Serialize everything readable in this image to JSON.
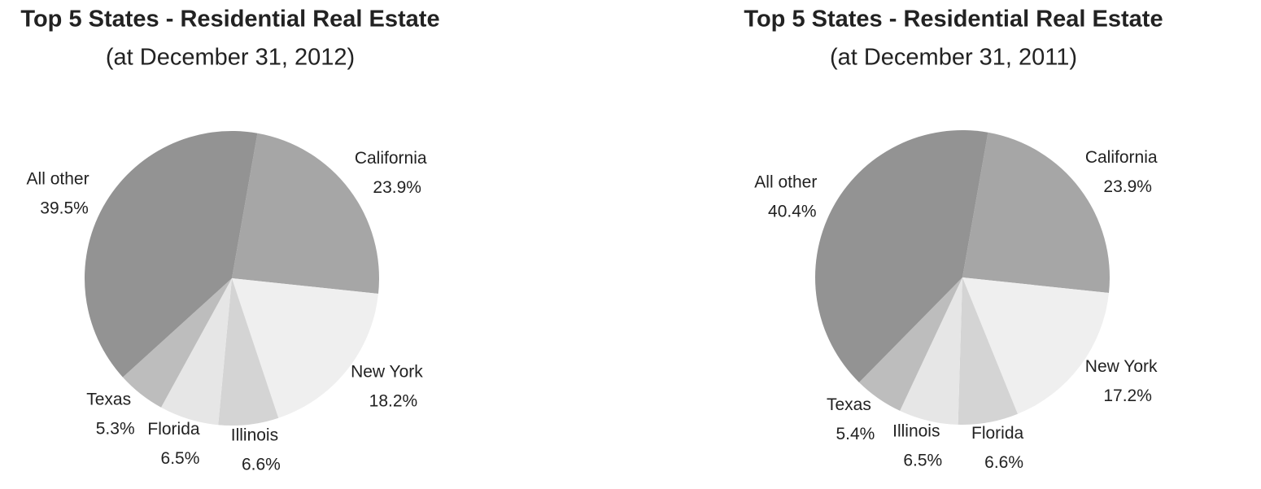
{
  "chart_data": [
    {
      "type": "pie",
      "title": "Top 5 States - Residential Real Estate",
      "subtitle": "(at December 31, 2012)",
      "categories": [
        "California",
        "New York",
        "Illinois",
        "Florida",
        "Texas",
        "All other"
      ],
      "values": [
        23.9,
        18.2,
        6.6,
        6.5,
        5.3,
        39.5
      ],
      "value_labels": [
        "23.9%",
        "18.2%",
        "6.6%",
        "6.5%",
        "5.3%",
        "39.5%"
      ],
      "colors": [
        "#a6a6a6",
        "#efefef",
        "#d4d4d4",
        "#e6e6e6",
        "#bdbdbd",
        "#939393"
      ]
    },
    {
      "type": "pie",
      "title": "Top 5 States - Residential Real Estate",
      "subtitle": "(at December 31, 2011)",
      "categories": [
        "California",
        "New York",
        "Florida",
        "Illinois",
        "Texas",
        "All other"
      ],
      "values": [
        23.9,
        17.2,
        6.6,
        6.5,
        5.4,
        40.4
      ],
      "value_labels": [
        "23.9%",
        "17.2%",
        "6.6%",
        "6.5%",
        "5.4%",
        "40.4%"
      ],
      "colors": [
        "#a6a6a6",
        "#efefef",
        "#d4d4d4",
        "#e6e6e6",
        "#bdbdbd",
        "#939393"
      ]
    }
  ]
}
